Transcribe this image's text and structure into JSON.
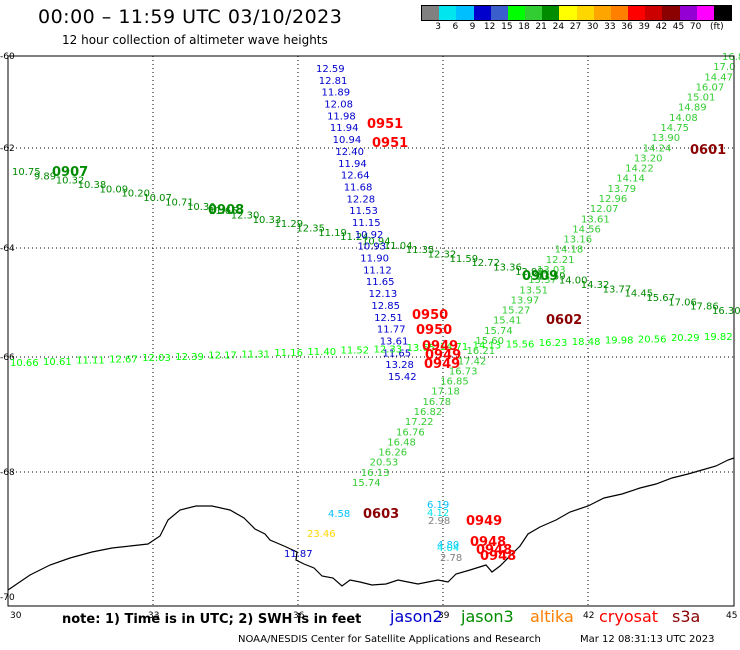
{
  "header": {
    "title": "00:00 – 11:59 UTC 03/10/2023",
    "subtitle": "12 hour collection of altimeter wave heights"
  },
  "colorbar": {
    "colors": [
      "#808080",
      "#00e5ee",
      "#00bfff",
      "#0000cd",
      "#3a5fcd",
      "#00ff00",
      "#32cd32",
      "#008b00",
      "#ffff00",
      "#ffd700",
      "#ffa500",
      "#ff7f00",
      "#ff0000",
      "#cd0000",
      "#8b0000",
      "#9400d3",
      "#ff00ff",
      "#000000"
    ],
    "labels": [
      "3",
      "6",
      "9",
      "12",
      "15",
      "18",
      "21",
      "24",
      "27",
      "30",
      "33",
      "36",
      "39",
      "42",
      "45",
      "70",
      "(ft)"
    ]
  },
  "axes": {
    "x_ticks": [
      "30",
      "33",
      "36",
      "39",
      "42",
      "45"
    ],
    "y_ticks": [
      "-60",
      "-62",
      "-64",
      "-66",
      "-68",
      "-70"
    ]
  },
  "tracks": {
    "a": {
      "color": "#008b00",
      "values": [
        "10.75",
        "9.89",
        "10.32",
        "10.38",
        "10.09",
        "10.20",
        "10.07",
        "10.71",
        "10.30",
        "11.66",
        "12.30",
        "10.33",
        "11.29",
        "12.35",
        "11.19",
        "11.24",
        "10.94",
        "11.04",
        "11.35",
        "12.32",
        "11.59",
        "12.72",
        "13.36",
        "12.98",
        "13.59",
        "14.00",
        "14.32",
        "13.77",
        "14.45",
        "15.67",
        "17.06",
        "17.86",
        "16.30"
      ]
    },
    "b": {
      "color": "#0000cd",
      "values": [
        "12.59",
        "12.81",
        "11.89",
        "12.08",
        "11.98",
        "11.94",
        "10.94",
        "12.40",
        "11.94",
        "12.64",
        "11.68",
        "12.28",
        "11.53",
        "11.15",
        "10.92",
        "10.93",
        "11.90",
        "11.12",
        "11.65",
        "12.13",
        "12.85",
        "12.51",
        "11.77",
        "13.61",
        "11.65",
        "13.28",
        "15.42"
      ]
    },
    "c": {
      "color": "#32cd32",
      "values": [
        "16.8",
        "17.0",
        "14.47",
        "16.07",
        "15.01",
        "14.89",
        "14.08",
        "14.75",
        "13.90",
        "14.24",
        "13.20",
        "14.22",
        "14.14",
        "13.79",
        "12.96",
        "12.07",
        "13.61",
        "14.56",
        "13.16",
        "14.18",
        "12.21",
        "13.03",
        "13.37",
        "13.51",
        "13.97",
        "15.27",
        "15.41",
        "15.74",
        "15.60",
        "16.21",
        "17.42",
        "16.73",
        "16.85",
        "17.18",
        "16.78",
        "16.82",
        "17.22",
        "16.76",
        "16.48",
        "16.26",
        "20.53",
        "16.13",
        "15.74"
      ]
    },
    "d": {
      "color": "#00ff00",
      "values": [
        "10.66",
        "10.61",
        "11.11",
        "12.67",
        "12.03",
        "12.39",
        "12.17",
        "11.31",
        "11.16",
        "11.40",
        "11.52",
        "12.33",
        "13.65",
        "14.71",
        "14.13",
        "15.56",
        "16.23",
        "18.48",
        "19.98",
        "20.56",
        "20.29",
        "19.82"
      ]
    }
  },
  "time_labels": [
    {
      "text": "0907",
      "color": "#008b00"
    },
    {
      "text": "0908",
      "color": "#008b00"
    },
    {
      "text": "0909",
      "color": "#008b00"
    },
    {
      "text": "0951",
      "color": "#ff0000"
    },
    {
      "text": "0951",
      "color": "#ff0000"
    },
    {
      "text": "0950",
      "color": "#ff0000"
    },
    {
      "text": "0950",
      "color": "#ff0000"
    },
    {
      "text": "0949",
      "color": "#ff0000"
    },
    {
      "text": "0949",
      "color": "#ff0000"
    },
    {
      "text": "0949",
      "color": "#ff0000"
    },
    {
      "text": "0601",
      "color": "#8b0000"
    },
    {
      "text": "0602",
      "color": "#8b0000"
    },
    {
      "text": "0603",
      "color": "#8b0000"
    },
    {
      "text": "0949",
      "color": "#ff0000"
    },
    {
      "text": "0948",
      "color": "#ff0000"
    },
    {
      "text": "0948",
      "color": "#ff0000"
    },
    {
      "text": "0948",
      "color": "#ff0000"
    }
  ],
  "south_values": [
    {
      "text": "4.58",
      "color": "#00bfff"
    },
    {
      "text": "23.46",
      "color": "#ffd700"
    },
    {
      "text": "11.87",
      "color": "#0000cd"
    },
    {
      "text": "6.19",
      "color": "#00bfff"
    },
    {
      "text": "4.12",
      "color": "#00e5ee"
    },
    {
      "text": "2.98",
      "color": "#808080"
    },
    {
      "text": "4.80",
      "color": "#00bfff"
    },
    {
      "text": "4.04",
      "color": "#00e5ee"
    },
    {
      "text": "2.78",
      "color": "#808080"
    }
  ],
  "footer": {
    "note": "note:  1) Time is in UTC;  2) SWH is in feet",
    "satellites": [
      {
        "name": "jason2",
        "color": "#0000cd"
      },
      {
        "name": "jason3",
        "color": "#008b00"
      },
      {
        "name": "altika",
        "color": "#ff7f00"
      },
      {
        "name": "cryosat",
        "color": "#ff0000"
      },
      {
        "name": "s3a",
        "color": "#8b0000"
      }
    ],
    "credit": "NOAA/NESDIS Center for Satellite Applications and Research",
    "timestamp": "Mar 12 08:31:13 UTC 2023"
  }
}
